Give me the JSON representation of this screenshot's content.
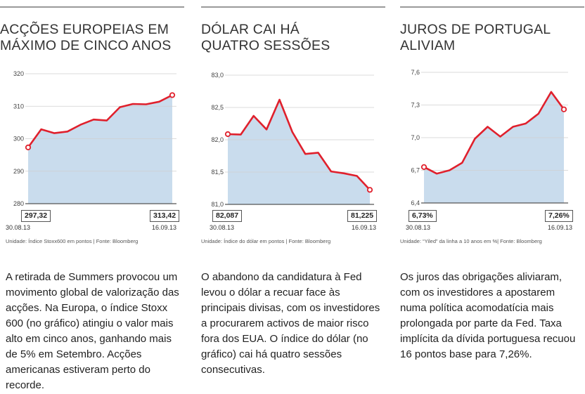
{
  "panels": [
    {
      "title_lines": [
        "ACÇÕES EUROPEIAS EM",
        "MÁXIMO DE CINCO ANOS"
      ],
      "start_value": "297,32",
      "end_value": "313,42",
      "start_date": "30.08.13",
      "end_date": "16.09.13",
      "source": "Unidade: Índice Stoxx600 em pontos | Fonte: Bloomberg",
      "body": "A retirada de Summers provocou um movimento global de valorização das acções. Na Europa, o índice Stoxx 600 (no gráfico) atingiu o valor mais alto em cinco anos, ganhando mais de 5% em Setembro. Acções americanas estiveram perto do recorde."
    },
    {
      "title_lines": [
        "DÓLAR CAI HÁ",
        "QUATRO SESSÕES"
      ],
      "start_value": "82,087",
      "end_value": "81,225",
      "start_date": "30.08.13",
      "end_date": "16.09.13",
      "source": "Unidade: Índice do dólar em pontos | Fonte: Bloomberg",
      "body": "O abandono da candidatura à Fed levou o dólar a recuar face às principais divisas, com os investidores a procurarem activos de maior risco fora dos EUA. O índice do dólar (no gráfico) cai há quatro sessões consecutivas."
    },
    {
      "title_lines": [
        "JUROS DE PORTUGAL",
        "ALIVIAM"
      ],
      "start_value": "6,73%",
      "end_value": "7,26%",
      "start_date": "30.08.13",
      "end_date": "16.09.13",
      "source": "Unidade: “Yiled” da linha a 10 anos em %| Fonte: Bloomberg",
      "body": "Os juros das obrigações aliviaram, com os investidores a apostarem numa política acomodatícia mais prolongada por parte da Fed. Taxa implícita da dívida portuguesa recuou 16 pontos base para 7,26%."
    }
  ],
  "colors": {
    "line": "#e0202c",
    "area": "#c9dced",
    "grid": "#cfcfcf",
    "axis": "#555555",
    "rule": "#9a9a9a"
  },
  "chart_data": [
    {
      "type": "area",
      "title": "ACÇÕES EUROPEIAS EM MÁXIMO DE CINCO ANOS",
      "ylim": [
        280,
        320
      ],
      "y_ticks": [
        "320",
        "310",
        "300",
        "290",
        "280"
      ],
      "y_tick_values": [
        320,
        310,
        300,
        290,
        280
      ],
      "x_start": "30.08.13",
      "x_end": "16.09.13",
      "series": [
        {
          "values": [
            297.32,
            302.9,
            301.7,
            302.2,
            304.3,
            305.9,
            305.6,
            309.7,
            310.7,
            310.6,
            311.4,
            313.42
          ]
        }
      ],
      "ylabel": "",
      "grid": true
    },
    {
      "type": "area",
      "title": "DÓLAR CAI HÁ QUATRO SESSÕES",
      "ylim": [
        81.0,
        83.0
      ],
      "y_ticks": [
        "83,0",
        "82,5",
        "82,0",
        "81,5",
        "81,0"
      ],
      "y_tick_values": [
        83.0,
        82.5,
        82.0,
        81.5,
        81.0
      ],
      "x_start": "30.08.13",
      "x_end": "16.09.13",
      "series": [
        {
          "values": [
            82.087,
            82.08,
            82.37,
            82.16,
            82.62,
            82.12,
            81.78,
            81.8,
            81.51,
            81.48,
            81.44,
            81.225
          ]
        }
      ],
      "ylabel": "",
      "grid": true
    },
    {
      "type": "area",
      "title": "JUROS DE PORTUGAL ALIVIAM",
      "ylim": [
        6.4,
        7.6
      ],
      "y_ticks": [
        "7,6",
        "7,3",
        "7,0",
        "6,7",
        "6,4"
      ],
      "y_tick_values": [
        7.6,
        7.3,
        7.0,
        6.7,
        6.4
      ],
      "x_start": "30.08.13",
      "x_end": "16.09.13",
      "series": [
        {
          "values": [
            6.73,
            6.67,
            6.7,
            6.77,
            6.99,
            7.1,
            7.01,
            7.1,
            7.13,
            7.22,
            7.42,
            7.26
          ]
        }
      ],
      "ylabel": "",
      "grid": true
    }
  ]
}
